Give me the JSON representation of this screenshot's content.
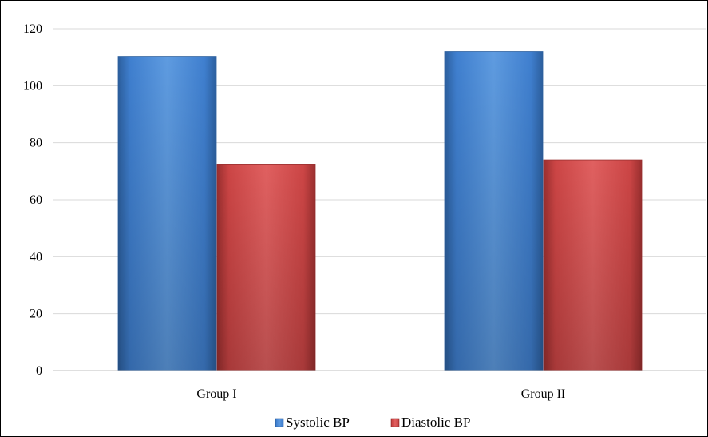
{
  "chart_data": {
    "type": "bar",
    "categories": [
      "Group I",
      "Group II"
    ],
    "series": [
      {
        "name": "Systolic BP",
        "values": [
          110.3,
          112.0
        ]
      },
      {
        "name": "Diastolic BP",
        "values": [
          72.5,
          74.0
        ]
      }
    ],
    "ylim": [
      0,
      120
    ],
    "yticks": [
      0,
      20,
      40,
      60,
      80,
      100,
      120
    ],
    "grid": true,
    "legend_position": "bottom",
    "colors": {
      "series": [
        "#3f7fcf",
        "#cc4545"
      ],
      "series_dark": [
        "#2c5f9e",
        "#9a2f2f"
      ],
      "series_light": [
        "#5e9be0",
        "#e06060"
      ],
      "grid": "#d9d9d9",
      "axis": "#bfbfbf"
    }
  }
}
